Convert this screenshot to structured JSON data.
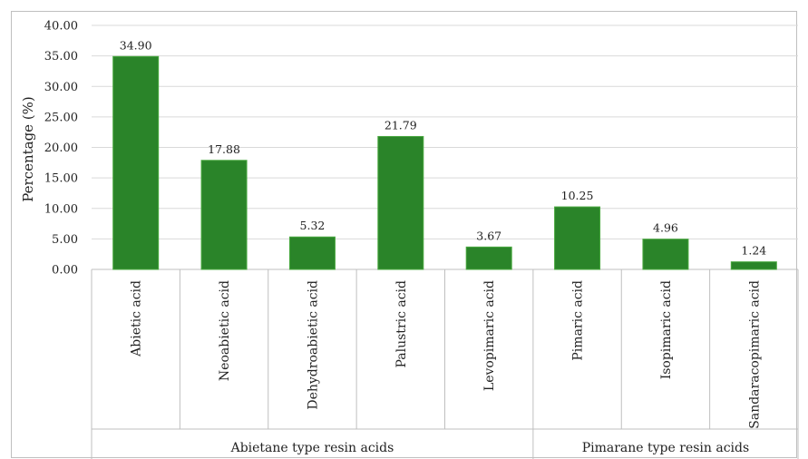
{
  "chart_data": {
    "type": "bar",
    "title": "",
    "ylabel": "Percentage (%)",
    "xlabel": "",
    "ylim": [
      0,
      40
    ],
    "yticks": [
      "0.00",
      "5.00",
      "10.00",
      "15.00",
      "20.00",
      "25.00",
      "30.00",
      "35.00",
      "40.00"
    ],
    "grid": true,
    "categories": [
      "Abietic acid",
      "Neoabietic acid",
      "Dehydroabietic acid",
      "Palustric acid",
      "Levopimaric acid",
      "Pimaric acid",
      "Isopimaric acid",
      "Sandaracopimaric acid"
    ],
    "values": [
      34.9,
      17.88,
      5.32,
      21.79,
      3.67,
      10.25,
      4.96,
      1.24
    ],
    "data_labels": [
      "34.90",
      "17.88",
      "5.32",
      "21.79",
      "3.67",
      "10.25",
      "4.96",
      "1.24"
    ],
    "groups": [
      {
        "label": "Abietane type resin acids",
        "categories": [
          "Abietic acid",
          "Neoabietic acid",
          "Dehydroabietic acid",
          "Palustric acid",
          "Levopimaric acid"
        ]
      },
      {
        "label": "Pimarane type resin acids",
        "categories": [
          "Pimaric acid",
          "Isopimaric acid",
          "Sandaracopimaric acid"
        ]
      }
    ],
    "colors": {
      "bar": "#2a8429",
      "bar_edge": "#49a83f",
      "grid": "#d9d9d9",
      "axis": "#bfbfbf"
    }
  }
}
